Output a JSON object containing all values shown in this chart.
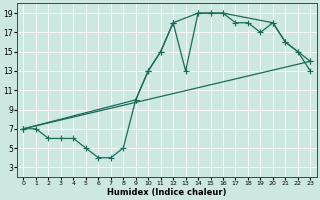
{
  "xlabel": "Humidex (Indice chaleur)",
  "bg_color": "#cce8e0",
  "grid_color": "#ffffff",
  "line_color": "#1a6b5a",
  "xlim": [
    -0.5,
    23.5
  ],
  "ylim": [
    2,
    20
  ],
  "xticks": [
    0,
    1,
    2,
    3,
    4,
    5,
    6,
    7,
    8,
    9,
    10,
    11,
    12,
    13,
    14,
    15,
    16,
    17,
    18,
    19,
    20,
    21,
    22,
    23
  ],
  "yticks": [
    3,
    5,
    7,
    9,
    11,
    13,
    15,
    17,
    19
  ],
  "line1_x": [
    0,
    1,
    2,
    3,
    4,
    5,
    6,
    7,
    8,
    9,
    10,
    11,
    12,
    13,
    14,
    15,
    16,
    17,
    18,
    19,
    20,
    21,
    22,
    23
  ],
  "line1_y": [
    7,
    7,
    6,
    6,
    6,
    5,
    4,
    4,
    5,
    10,
    13,
    15,
    18,
    13,
    19,
    19,
    19,
    18,
    18,
    17,
    18,
    16,
    15,
    13
  ],
  "line2_x": [
    0,
    9,
    10,
    11,
    12,
    14,
    15,
    16,
    20,
    21,
    23
  ],
  "line2_y": [
    7,
    10,
    13,
    15,
    18,
    19,
    19,
    19,
    18,
    16,
    14
  ],
  "line3_x": [
    0,
    23
  ],
  "line3_y": [
    7,
    14
  ]
}
